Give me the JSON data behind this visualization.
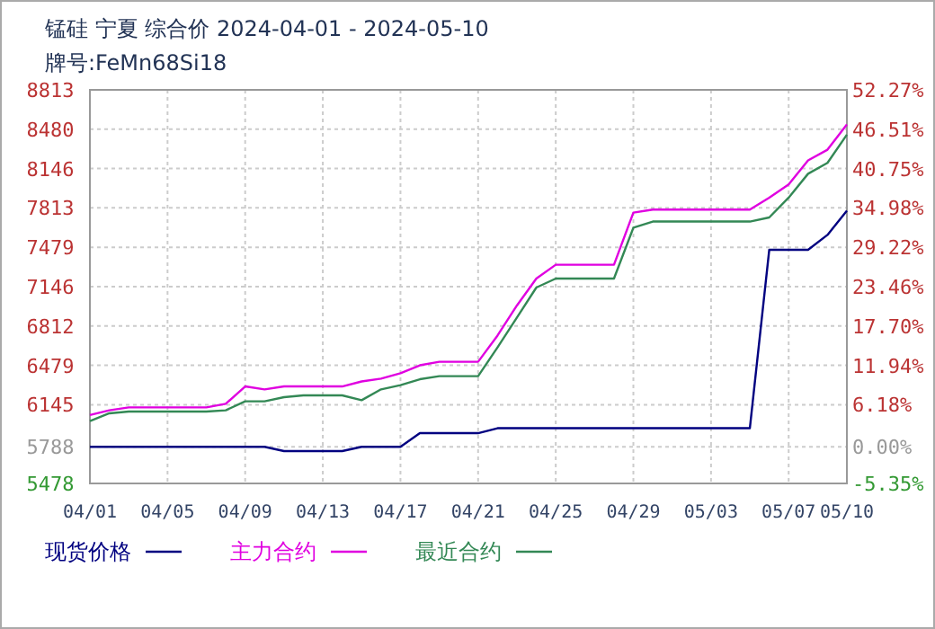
{
  "chart_data": {
    "type": "line",
    "title": "锰硅 宁夏 综合价 2024-04-01 - 2024-05-10",
    "subtitle": "牌号:FeMn68Si18",
    "xlim": [
      "2024-04-01",
      "2024-05-10"
    ],
    "xticks": [
      {
        "value": "2024-04-01",
        "label": "04/01"
      },
      {
        "value": "2024-04-05",
        "label": "04/05"
      },
      {
        "value": "2024-04-09",
        "label": "04/09"
      },
      {
        "value": "2024-04-13",
        "label": "04/13"
      },
      {
        "value": "2024-04-17",
        "label": "04/17"
      },
      {
        "value": "2024-04-21",
        "label": "04/21"
      },
      {
        "value": "2024-04-25",
        "label": "04/25"
      },
      {
        "value": "2024-04-29",
        "label": "04/29"
      },
      {
        "value": "2024-05-03",
        "label": "05/03"
      },
      {
        "value": "2024-05-07",
        "label": "05/07"
      },
      {
        "value": "2024-05-10",
        "label": "05/10"
      }
    ],
    "ylim": [
      5478,
      8813
    ],
    "yticks": [
      5478,
      5788,
      6145,
      6479,
      6812,
      7146,
      7479,
      7813,
      8146,
      8480,
      8813
    ],
    "y2lim": [
      -5.35,
      52.27
    ],
    "y2ticks": [
      {
        "value": -5.35,
        "label": "-5.35%"
      },
      {
        "value": 0,
        "label": "0.00%"
      },
      {
        "value": 6.18,
        "label": "6.18%"
      },
      {
        "value": 11.94,
        "label": "11.94%"
      },
      {
        "value": 17.7,
        "label": "17.70%"
      },
      {
        "value": 23.46,
        "label": "23.46%"
      },
      {
        "value": 29.22,
        "label": "29.22%"
      },
      {
        "value": 34.98,
        "label": "34.98%"
      },
      {
        "value": 40.75,
        "label": "40.75%"
      },
      {
        "value": 46.51,
        "label": "46.51%"
      },
      {
        "value": 52.27,
        "label": "52.27%"
      }
    ],
    "grid": true,
    "legend": "bottom",
    "line_style": "solid",
    "series": [
      {
        "name": "现货价格",
        "color": "#000080",
        "x": [
          "2024-04-01",
          "2024-04-10",
          "2024-04-11",
          "2024-04-14",
          "2024-04-15",
          "2024-04-17",
          "2024-04-18",
          "2024-04-21",
          "2024-04-22",
          "2024-05-05",
          "2024-05-06",
          "2024-05-08",
          "2024-05-09",
          "2024-05-10"
        ],
        "values": [
          5788,
          5788,
          5752,
          5752,
          5788,
          5788,
          5904,
          5904,
          5946,
          5946,
          7458,
          7458,
          7584,
          7788
        ]
      },
      {
        "name": "主力合约",
        "color": "#e000e0",
        "x": [
          "2024-04-01",
          "2024-04-02",
          "2024-04-03",
          "2024-04-07",
          "2024-04-08",
          "2024-04-09",
          "2024-04-10",
          "2024-04-11",
          "2024-04-14",
          "2024-04-15",
          "2024-04-16",
          "2024-04-17",
          "2024-04-18",
          "2024-04-19",
          "2024-04-21",
          "2024-04-22",
          "2024-04-23",
          "2024-04-24",
          "2024-04-25",
          "2024-04-28",
          "2024-04-29",
          "2024-04-30",
          "2024-05-05",
          "2024-05-06",
          "2024-05-07",
          "2024-05-08",
          "2024-05-09",
          "2024-05-10"
        ],
        "values": [
          6057,
          6098,
          6122,
          6122,
          6153,
          6300,
          6275,
          6300,
          6300,
          6342,
          6366,
          6412,
          6479,
          6509,
          6509,
          6731,
          6986,
          7214,
          7331,
          7331,
          7773,
          7798,
          7798,
          7900,
          8011,
          8215,
          8306,
          8520
        ]
      },
      {
        "name": "最近合约",
        "color": "#338855",
        "x": [
          "2024-04-01",
          "2024-04-02",
          "2024-04-03",
          "2024-04-07",
          "2024-04-08",
          "2024-04-09",
          "2024-04-10",
          "2024-04-11",
          "2024-04-12",
          "2024-04-14",
          "2024-04-15",
          "2024-04-16",
          "2024-04-17",
          "2024-04-18",
          "2024-04-19",
          "2024-04-21",
          "2024-04-22",
          "2024-04-23",
          "2024-04-24",
          "2024-04-25",
          "2024-04-28",
          "2024-04-29",
          "2024-04-30",
          "2024-05-05",
          "2024-05-06",
          "2024-05-07",
          "2024-05-08",
          "2024-05-09",
          "2024-05-10"
        ],
        "values": [
          6006,
          6072,
          6087,
          6087,
          6098,
          6174,
          6174,
          6209,
          6224,
          6224,
          6183,
          6275,
          6311,
          6361,
          6387,
          6387,
          6631,
          6884,
          7138,
          7214,
          7214,
          7645,
          7697,
          7697,
          7732,
          7900,
          8102,
          8194,
          8433
        ]
      }
    ]
  }
}
